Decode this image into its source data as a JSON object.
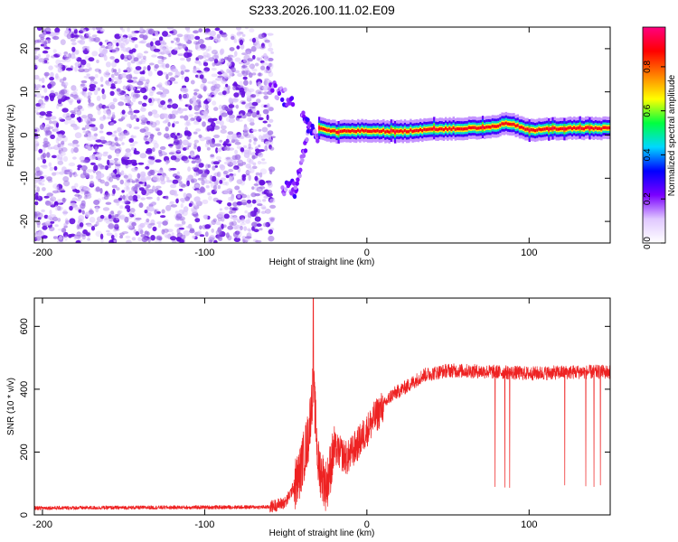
{
  "title": "S233.2026.100.11.02.E09",
  "colors": {
    "snr_line": "#ee2222",
    "axis": "#000000",
    "background": "#ffffff",
    "scatter_noise": "#9a66e6",
    "scatter_strong": "#6610e0"
  },
  "chart_data": [
    {
      "type": "heatmap",
      "name": "spectrogram",
      "xlabel": "Height of straight line (km)",
      "ylabel": "Frequency (Hz)",
      "xlim": [
        -205,
        150
      ],
      "ylim": [
        -25,
        25
      ],
      "x_ticks": [
        -200,
        -100,
        0,
        100
      ],
      "y_ticks": [
        -20,
        -10,
        0,
        10,
        20
      ],
      "colorbar": {
        "label": "Normalized spectral amplitude",
        "range": [
          0.0,
          0.98
        ],
        "ticks": [
          "0.0",
          "0.2",
          "0.4",
          "0.6",
          "0.8"
        ],
        "tick_values": [
          0.0,
          0.2,
          0.4,
          0.6,
          0.8
        ],
        "colormap": [
          "#ffffff",
          "#e0c8ff",
          "#7a00ff",
          "#0000ff",
          "#00d8ff",
          "#00ff40",
          "#ffff00",
          "#ff8000",
          "#ff0000",
          "#ff0080"
        ]
      },
      "noise_region": {
        "x_range": [
          -205,
          -58
        ],
        "freq_range": [
          -25,
          25
        ],
        "amplitude": [
          0.02,
          0.12
        ]
      },
      "transition_region": {
        "x_range": [
          -60,
          -20
        ],
        "note": "frequency excursions from ~10 Hz down to ~-15 Hz"
      },
      "tone": {
        "x_range": [
          -30,
          150
        ],
        "center_hz": [
          {
            "x": -30,
            "y": 1.5
          },
          {
            "x": -20,
            "y": 0.8
          },
          {
            "x": 0,
            "y": 1.0
          },
          {
            "x": 20,
            "y": 0.8
          },
          {
            "x": 40,
            "y": 1.4
          },
          {
            "x": 60,
            "y": 1.5
          },
          {
            "x": 75,
            "y": 1.8
          },
          {
            "x": 85,
            "y": 2.6
          },
          {
            "x": 92,
            "y": 2.2
          },
          {
            "x": 100,
            "y": 1.0
          },
          {
            "x": 110,
            "y": 1.4
          },
          {
            "x": 130,
            "y": 1.6
          },
          {
            "x": 150,
            "y": 1.6
          }
        ],
        "peak_amplitude": 0.95
      }
    },
    {
      "type": "line",
      "name": "snr",
      "xlabel": "Height of straight line (km)",
      "ylabel": "SNR (10 * v/v)",
      "xlim": [
        -205,
        150
      ],
      "ylim": [
        0,
        690
      ],
      "x_ticks": [
        -200,
        -100,
        0,
        100
      ],
      "y_ticks": [
        0,
        200,
        400,
        600
      ],
      "series": [
        {
          "name": "SNR",
          "color": "#ee2222",
          "baseline": [
            {
              "x": -205,
              "y": 22
            },
            {
              "x": -60,
              "y": 25
            },
            {
              "x": -50,
              "y": 40
            },
            {
              "x": -42,
              "y": 120
            },
            {
              "x": -36,
              "y": 250
            },
            {
              "x": -33,
              "y": 420
            },
            {
              "x": -30,
              "y": 160
            },
            {
              "x": -25,
              "y": 90
            },
            {
              "x": -20,
              "y": 210
            },
            {
              "x": -12,
              "y": 180
            },
            {
              "x": -5,
              "y": 230
            },
            {
              "x": 5,
              "y": 310
            },
            {
              "x": 15,
              "y": 380
            },
            {
              "x": 25,
              "y": 410
            },
            {
              "x": 35,
              "y": 445
            },
            {
              "x": 50,
              "y": 460
            },
            {
              "x": 80,
              "y": 455
            },
            {
              "x": 100,
              "y": 450
            },
            {
              "x": 130,
              "y": 455
            },
            {
              "x": 150,
              "y": 455
            }
          ],
          "peak": {
            "x": -33,
            "y": 690
          },
          "dropouts": [
            {
              "x": 79,
              "y": 90
            },
            {
              "x": 85,
              "y": 88
            },
            {
              "x": 88,
              "y": 87
            },
            {
              "x": 122,
              "y": 95
            },
            {
              "x": 135,
              "y": 92
            },
            {
              "x": 140,
              "y": 90
            },
            {
              "x": 144,
              "y": 95
            }
          ]
        }
      ]
    }
  ]
}
